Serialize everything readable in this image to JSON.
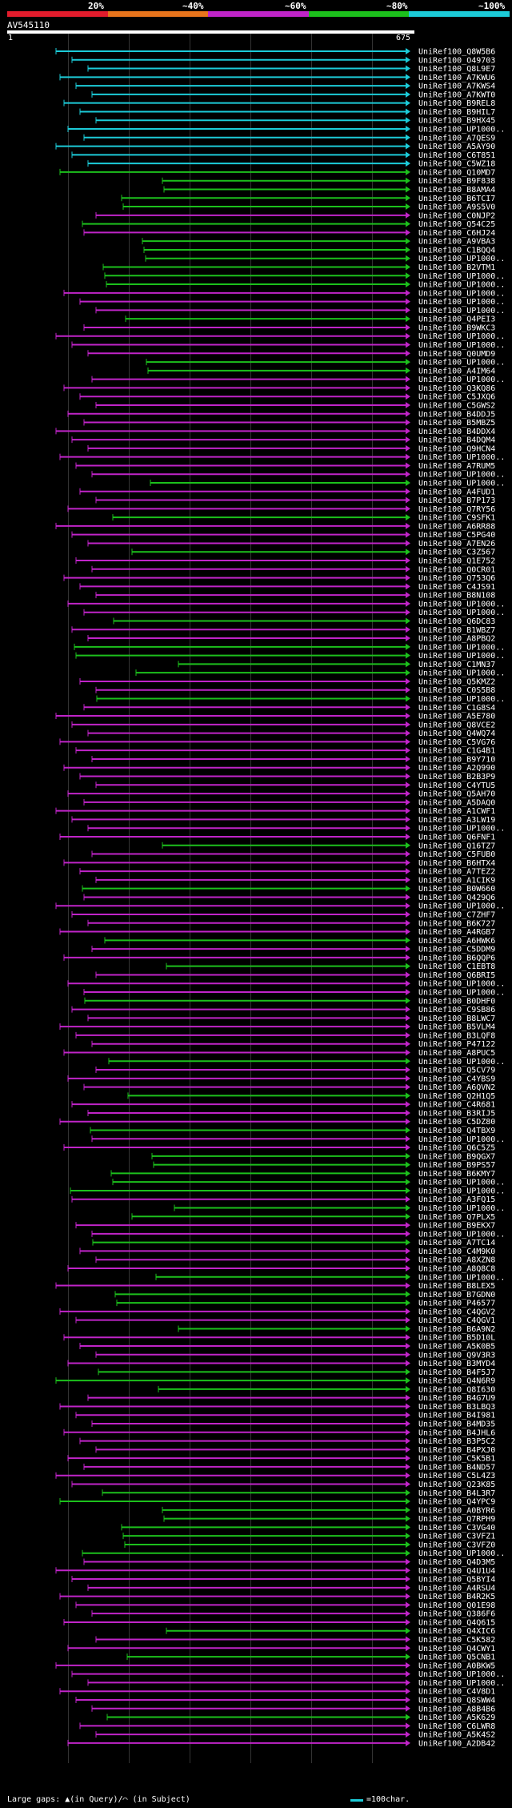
{
  "legend": {
    "labels": [
      "20%",
      "~40%",
      "~60%",
      "~80%",
      "~100%"
    ],
    "colors": [
      "#e21c2c",
      "#e8741c",
      "#c024c8",
      "#1cc01c",
      "#1ccbd8"
    ]
  },
  "query": {
    "id": "AV545110",
    "start": "1",
    "end": "675"
  },
  "footer": {
    "gaps_text": "Large gaps: ▲(in Query)/⌒ (in Subject)",
    "scale_text": "=100char."
  },
  "hits": [
    {
      "name": "UniRef100_Q8W5B6",
      "color": "cyan"
    },
    {
      "name": "UniRef100_O49703",
      "color": "cyan"
    },
    {
      "name": "UniRef100_Q8L9E7",
      "color": "cyan"
    },
    {
      "name": "UniRef100_A7KWU6",
      "color": "cyan"
    },
    {
      "name": "UniRef100_A7KWS4",
      "color": "cyan"
    },
    {
      "name": "UniRef100_A7KWT0",
      "color": "cyan"
    },
    {
      "name": "UniRef100_B9REL8",
      "color": "cyan"
    },
    {
      "name": "UniRef100_B9HIL7",
      "color": "cyan"
    },
    {
      "name": "UniRef100_B9HX45",
      "color": "cyan"
    },
    {
      "name": "UniRef100_UP1000..",
      "color": "cyan"
    },
    {
      "name": "UniRef100_A7QES9",
      "color": "cyan"
    },
    {
      "name": "UniRef100_A5AY90",
      "color": "cyan"
    },
    {
      "name": "UniRef100_C6T851",
      "color": "cyan"
    },
    {
      "name": "UniRef100_C5WZ18",
      "color": "cyan"
    },
    {
      "name": "UniRef100_Q10MD7",
      "color": "green"
    },
    {
      "name": "UniRef100_B9F838",
      "color": "green"
    },
    {
      "name": "UniRef100_B8AMA4",
      "color": "green"
    },
    {
      "name": "UniRef100_B6TCI7",
      "color": "green"
    },
    {
      "name": "UniRef100_A9S5V0",
      "color": "green"
    },
    {
      "name": "UniRef100_C0NJP2",
      "color": "magenta"
    },
    {
      "name": "UniRef100_Q54C25",
      "color": "green"
    },
    {
      "name": "UniRef100_C6HJ24",
      "color": "magenta"
    },
    {
      "name": "UniRef100_A9VBA3",
      "color": "green"
    },
    {
      "name": "UniRef100_C1BQQ4",
      "color": "green"
    },
    {
      "name": "UniRef100_UP1000..",
      "color": "green"
    },
    {
      "name": "UniRef100_B2VTM1",
      "color": "green"
    },
    {
      "name": "UniRef100_UP1000..",
      "color": "green"
    },
    {
      "name": "UniRef100_UP1000..",
      "color": "green"
    },
    {
      "name": "UniRef100_UP1000..",
      "color": "magenta"
    },
    {
      "name": "UniRef100_UP1000..",
      "color": "magenta"
    },
    {
      "name": "UniRef100_UP1000..",
      "color": "magenta"
    },
    {
      "name": "UniRef100_Q4PEI3",
      "color": "green"
    },
    {
      "name": "UniRef100_B9WKC3",
      "color": "magenta"
    },
    {
      "name": "UniRef100_UP1000..",
      "color": "magenta"
    },
    {
      "name": "UniRef100_UP1000..",
      "color": "magenta"
    },
    {
      "name": "UniRef100_Q0UMD9",
      "color": "magenta"
    },
    {
      "name": "UniRef100_UP1000..",
      "color": "green"
    },
    {
      "name": "UniRef100_A4IM64",
      "color": "green"
    },
    {
      "name": "UniRef100_UP1000..",
      "color": "magenta"
    },
    {
      "name": "UniRef100_Q3KQ86",
      "color": "magenta"
    },
    {
      "name": "UniRef100_C5JXQ6",
      "color": "magenta"
    },
    {
      "name": "UniRef100_C5GWS2",
      "color": "magenta"
    },
    {
      "name": "UniRef100_B4DDJ5",
      "color": "magenta"
    },
    {
      "name": "UniRef100_B5MBZ5",
      "color": "magenta"
    },
    {
      "name": "UniRef100_B4DDX4",
      "color": "magenta"
    },
    {
      "name": "UniRef100_B4DQM4",
      "color": "magenta"
    },
    {
      "name": "UniRef100_Q9HCN4",
      "color": "magenta"
    },
    {
      "name": "UniRef100_UP1000..",
      "color": "magenta"
    },
    {
      "name": "UniRef100_A7RUM5",
      "color": "magenta"
    },
    {
      "name": "UniRef100_UP1000..",
      "color": "magenta"
    },
    {
      "name": "UniRef100_UP1000..",
      "color": "green"
    },
    {
      "name": "UniRef100_A4FUD1",
      "color": "magenta"
    },
    {
      "name": "UniRef100_B7P173",
      "color": "magenta"
    },
    {
      "name": "UniRef100_Q7RY56",
      "color": "magenta"
    },
    {
      "name": "UniRef100_C9SFK1",
      "color": "green"
    },
    {
      "name": "UniRef100_A6RR88",
      "color": "magenta"
    },
    {
      "name": "UniRef100_C5PG40",
      "color": "magenta"
    },
    {
      "name": "UniRef100_A7EN26",
      "color": "magenta"
    },
    {
      "name": "UniRef100_C3Z567",
      "color": "green"
    },
    {
      "name": "UniRef100_Q1E752",
      "color": "magenta"
    },
    {
      "name": "UniRef100_Q0CR01",
      "color": "magenta"
    },
    {
      "name": "UniRef100_Q753Q6",
      "color": "magenta"
    },
    {
      "name": "UniRef100_C4JS91",
      "color": "magenta"
    },
    {
      "name": "UniRef100_B8N108",
      "color": "magenta"
    },
    {
      "name": "UniRef100_UP1000..",
      "color": "magenta"
    },
    {
      "name": "UniRef100_UP1000..",
      "color": "magenta"
    },
    {
      "name": "UniRef100_Q6DC83",
      "color": "green"
    },
    {
      "name": "UniRef100_B1WBZ7",
      "color": "magenta"
    },
    {
      "name": "UniRef100_A8PBQ2",
      "color": "magenta"
    },
    {
      "name": "UniRef100_UP1000..",
      "color": "green"
    },
    {
      "name": "UniRef100_UP1000..",
      "color": "green"
    },
    {
      "name": "UniRef100_C1MN37",
      "color": "green"
    },
    {
      "name": "UniRef100_UP1000..",
      "color": "green"
    },
    {
      "name": "UniRef100_Q5KMZ2",
      "color": "magenta"
    },
    {
      "name": "UniRef100_C0S5B8",
      "color": "magenta"
    },
    {
      "name": "UniRef100_UP1000..",
      "color": "green"
    },
    {
      "name": "UniRef100_C1G8S4",
      "color": "magenta"
    },
    {
      "name": "UniRef100_A5E780",
      "color": "magenta"
    },
    {
      "name": "UniRef100_Q8VCE2",
      "color": "magenta"
    },
    {
      "name": "UniRef100_Q4WQ74",
      "color": "magenta"
    },
    {
      "name": "UniRef100_C5VG76",
      "color": "magenta"
    },
    {
      "name": "UniRef100_C1G4B1",
      "color": "magenta"
    },
    {
      "name": "UniRef100_B9Y710",
      "color": "magenta"
    },
    {
      "name": "UniRef100_A2Q990",
      "color": "magenta"
    },
    {
      "name": "UniRef100_B2B3P9",
      "color": "magenta"
    },
    {
      "name": "UniRef100_C4YTU5",
      "color": "magenta"
    },
    {
      "name": "UniRef100_Q5AH70",
      "color": "magenta"
    },
    {
      "name": "UniRef100_A5DAQ0",
      "color": "magenta"
    },
    {
      "name": "UniRef100_A1CWF1",
      "color": "magenta"
    },
    {
      "name": "UniRef100_A3LW19",
      "color": "magenta"
    },
    {
      "name": "UniRef100_UP1000..",
      "color": "magenta"
    },
    {
      "name": "UniRef100_Q6FNF1",
      "color": "magenta"
    },
    {
      "name": "UniRef100_Q16TZ7",
      "color": "green"
    },
    {
      "name": "UniRef100_C5FUB0",
      "color": "magenta"
    },
    {
      "name": "UniRef100_B6HTX4",
      "color": "magenta"
    },
    {
      "name": "UniRef100_A7TEZ2",
      "color": "magenta"
    },
    {
      "name": "UniRef100_A1CIK9",
      "color": "magenta"
    },
    {
      "name": "UniRef100_B0W660",
      "color": "green"
    },
    {
      "name": "UniRef100_Q429Q6",
      "color": "magenta"
    },
    {
      "name": "UniRef100_UP1000..",
      "color": "magenta"
    },
    {
      "name": "UniRef100_C7ZHF7",
      "color": "magenta"
    },
    {
      "name": "UniRef100_B6K727",
      "color": "magenta"
    },
    {
      "name": "UniRef100_A4RGB7",
      "color": "magenta"
    },
    {
      "name": "UniRef100_A6HWK6",
      "color": "green"
    },
    {
      "name": "UniRef100_C5DDM9",
      "color": "magenta"
    },
    {
      "name": "UniRef100_B6QQP6",
      "color": "magenta"
    },
    {
      "name": "UniRef100_C1EBT8",
      "color": "green"
    },
    {
      "name": "UniRef100_Q6BRI5",
      "color": "magenta"
    },
    {
      "name": "UniRef100_UP1000..",
      "color": "magenta"
    },
    {
      "name": "UniRef100_UP1000..",
      "color": "magenta"
    },
    {
      "name": "UniRef100_B0DHF0",
      "color": "green"
    },
    {
      "name": "UniRef100_C9SB86",
      "color": "magenta"
    },
    {
      "name": "UniRef100_B8LWC7",
      "color": "magenta"
    },
    {
      "name": "UniRef100_B5VLM4",
      "color": "magenta"
    },
    {
      "name": "UniRef100_B3LQF8",
      "color": "magenta"
    },
    {
      "name": "UniRef100_P47122",
      "color": "magenta"
    },
    {
      "name": "UniRef100_A8PUC5",
      "color": "magenta"
    },
    {
      "name": "UniRef100_UP1000..",
      "color": "green"
    },
    {
      "name": "UniRef100_Q5CV79",
      "color": "magenta"
    },
    {
      "name": "UniRef100_C4YBS9",
      "color": "magenta"
    },
    {
      "name": "UniRef100_A6QVN2",
      "color": "magenta"
    },
    {
      "name": "UniRef100_Q2H1Q5",
      "color": "green"
    },
    {
      "name": "UniRef100_C4R681",
      "color": "magenta"
    },
    {
      "name": "UniRef100_B3RIJ5",
      "color": "magenta"
    },
    {
      "name": "UniRef100_C5DZ80",
      "color": "magenta"
    },
    {
      "name": "UniRef100_Q4TBX9",
      "color": "green"
    },
    {
      "name": "UniRef100_UP1000..",
      "color": "magenta"
    },
    {
      "name": "UniRef100_Q6C5Z5",
      "color": "magenta"
    },
    {
      "name": "UniRef100_B9QGX7",
      "color": "green"
    },
    {
      "name": "UniRef100_B9PS57",
      "color": "green"
    },
    {
      "name": "UniRef100_B6KMY7",
      "color": "green"
    },
    {
      "name": "UniRef100_UP1000..",
      "color": "green"
    },
    {
      "name": "UniRef100_UP1000..",
      "color": "green"
    },
    {
      "name": "UniRef100_A3FQ15",
      "color": "magenta"
    },
    {
      "name": "UniRef100_UP1000..",
      "color": "green"
    },
    {
      "name": "UniRef100_Q7PLX5",
      "color": "green"
    },
    {
      "name": "UniRef100_B9EKX7",
      "color": "magenta"
    },
    {
      "name": "UniRef100_UP1000..",
      "color": "magenta"
    },
    {
      "name": "UniRef100_A7TC14",
      "color": "green"
    },
    {
      "name": "UniRef100_C4M9K0",
      "color": "magenta"
    },
    {
      "name": "UniRef100_A8XZN8",
      "color": "magenta"
    },
    {
      "name": "UniRef100_A8Q8C8",
      "color": "magenta"
    },
    {
      "name": "UniRef100_UP1000..",
      "color": "green"
    },
    {
      "name": "UniRef100_B8LEX5",
      "color": "magenta"
    },
    {
      "name": "UniRef100_B7GDN0",
      "color": "green"
    },
    {
      "name": "UniRef100_P46577",
      "color": "green"
    },
    {
      "name": "UniRef100_C4QGV2",
      "color": "magenta"
    },
    {
      "name": "UniRef100_C4QGV1",
      "color": "magenta"
    },
    {
      "name": "UniRef100_B6A9N2",
      "color": "green"
    },
    {
      "name": "UniRef100_B5D10L",
      "color": "magenta"
    },
    {
      "name": "UniRef100_A5K0B5",
      "color": "magenta"
    },
    {
      "name": "UniRef100_Q9V3R3",
      "color": "magenta"
    },
    {
      "name": "UniRef100_B3MYD4",
      "color": "magenta"
    },
    {
      "name": "UniRef100_B4F5J7",
      "color": "green"
    },
    {
      "name": "UniRef100_Q4N6R9",
      "color": "green"
    },
    {
      "name": "UniRef100_Q8I630",
      "color": "green"
    },
    {
      "name": "UniRef100_B4G7U9",
      "color": "magenta"
    },
    {
      "name": "UniRef100_B3LBQ3",
      "color": "magenta"
    },
    {
      "name": "UniRef100_B4I981",
      "color": "magenta"
    },
    {
      "name": "UniRef100_B4MD35",
      "color": "magenta"
    },
    {
      "name": "UniRef100_B4JHL6",
      "color": "magenta"
    },
    {
      "name": "UniRef100_B3P5C2",
      "color": "magenta"
    },
    {
      "name": "UniRef100_B4PXJ0",
      "color": "magenta"
    },
    {
      "name": "UniRef100_C5K5B1",
      "color": "magenta"
    },
    {
      "name": "UniRef100_B4ND57",
      "color": "magenta"
    },
    {
      "name": "UniRef100_C5L4Z3",
      "color": "magenta"
    },
    {
      "name": "UniRef100_Q23K85",
      "color": "magenta"
    },
    {
      "name": "UniRef100_B4L3R7",
      "color": "green"
    },
    {
      "name": "UniRef100_Q4YPC9",
      "color": "green"
    },
    {
      "name": "UniRef100_A0BYR6",
      "color": "green"
    },
    {
      "name": "UniRef100_Q7RPH9",
      "color": "green"
    },
    {
      "name": "UniRef100_C3VG40",
      "color": "green"
    },
    {
      "name": "UniRef100_C3VFZ1",
      "color": "green"
    },
    {
      "name": "UniRef100_C3VFZ0",
      "color": "green"
    },
    {
      "name": "UniRef100_UP1000..",
      "color": "green"
    },
    {
      "name": "UniRef100_Q4D3M5",
      "color": "magenta"
    },
    {
      "name": "UniRef100_Q4U1U4",
      "color": "magenta"
    },
    {
      "name": "UniRef100_Q5BYI4",
      "color": "magenta"
    },
    {
      "name": "UniRef100_A4RSU4",
      "color": "magenta"
    },
    {
      "name": "UniRef100_B4R2K5",
      "color": "magenta"
    },
    {
      "name": "UniRef100_Q01E98",
      "color": "magenta"
    },
    {
      "name": "UniRef100_Q386F6",
      "color": "magenta"
    },
    {
      "name": "UniRef100_Q4Q615",
      "color": "magenta"
    },
    {
      "name": "UniRef100_Q4XIC6",
      "color": "green"
    },
    {
      "name": "UniRef100_C5K582",
      "color": "magenta"
    },
    {
      "name": "UniRef100_Q4CWY1",
      "color": "magenta"
    },
    {
      "name": "UniRef100_Q5CNB1",
      "color": "green"
    },
    {
      "name": "UniRef100_A0BKW5",
      "color": "magenta"
    },
    {
      "name": "UniRef100_UP1000..",
      "color": "magenta"
    },
    {
      "name": "UniRef100_UP1000..",
      "color": "magenta"
    },
    {
      "name": "UniRef100_C4V8D1",
      "color": "magenta"
    },
    {
      "name": "UniRef100_Q8SWW4",
      "color": "magenta"
    },
    {
      "name": "UniRef100_A8B4B6",
      "color": "magenta"
    },
    {
      "name": "UniRef100_A5K629",
      "color": "green"
    },
    {
      "name": "UniRef100_C6LWR8",
      "color": "magenta"
    },
    {
      "name": "UniRef100_A5K4S2",
      "color": "magenta"
    },
    {
      "name": "UniRef100_A2DB42",
      "color": "magenta"
    }
  ]
}
